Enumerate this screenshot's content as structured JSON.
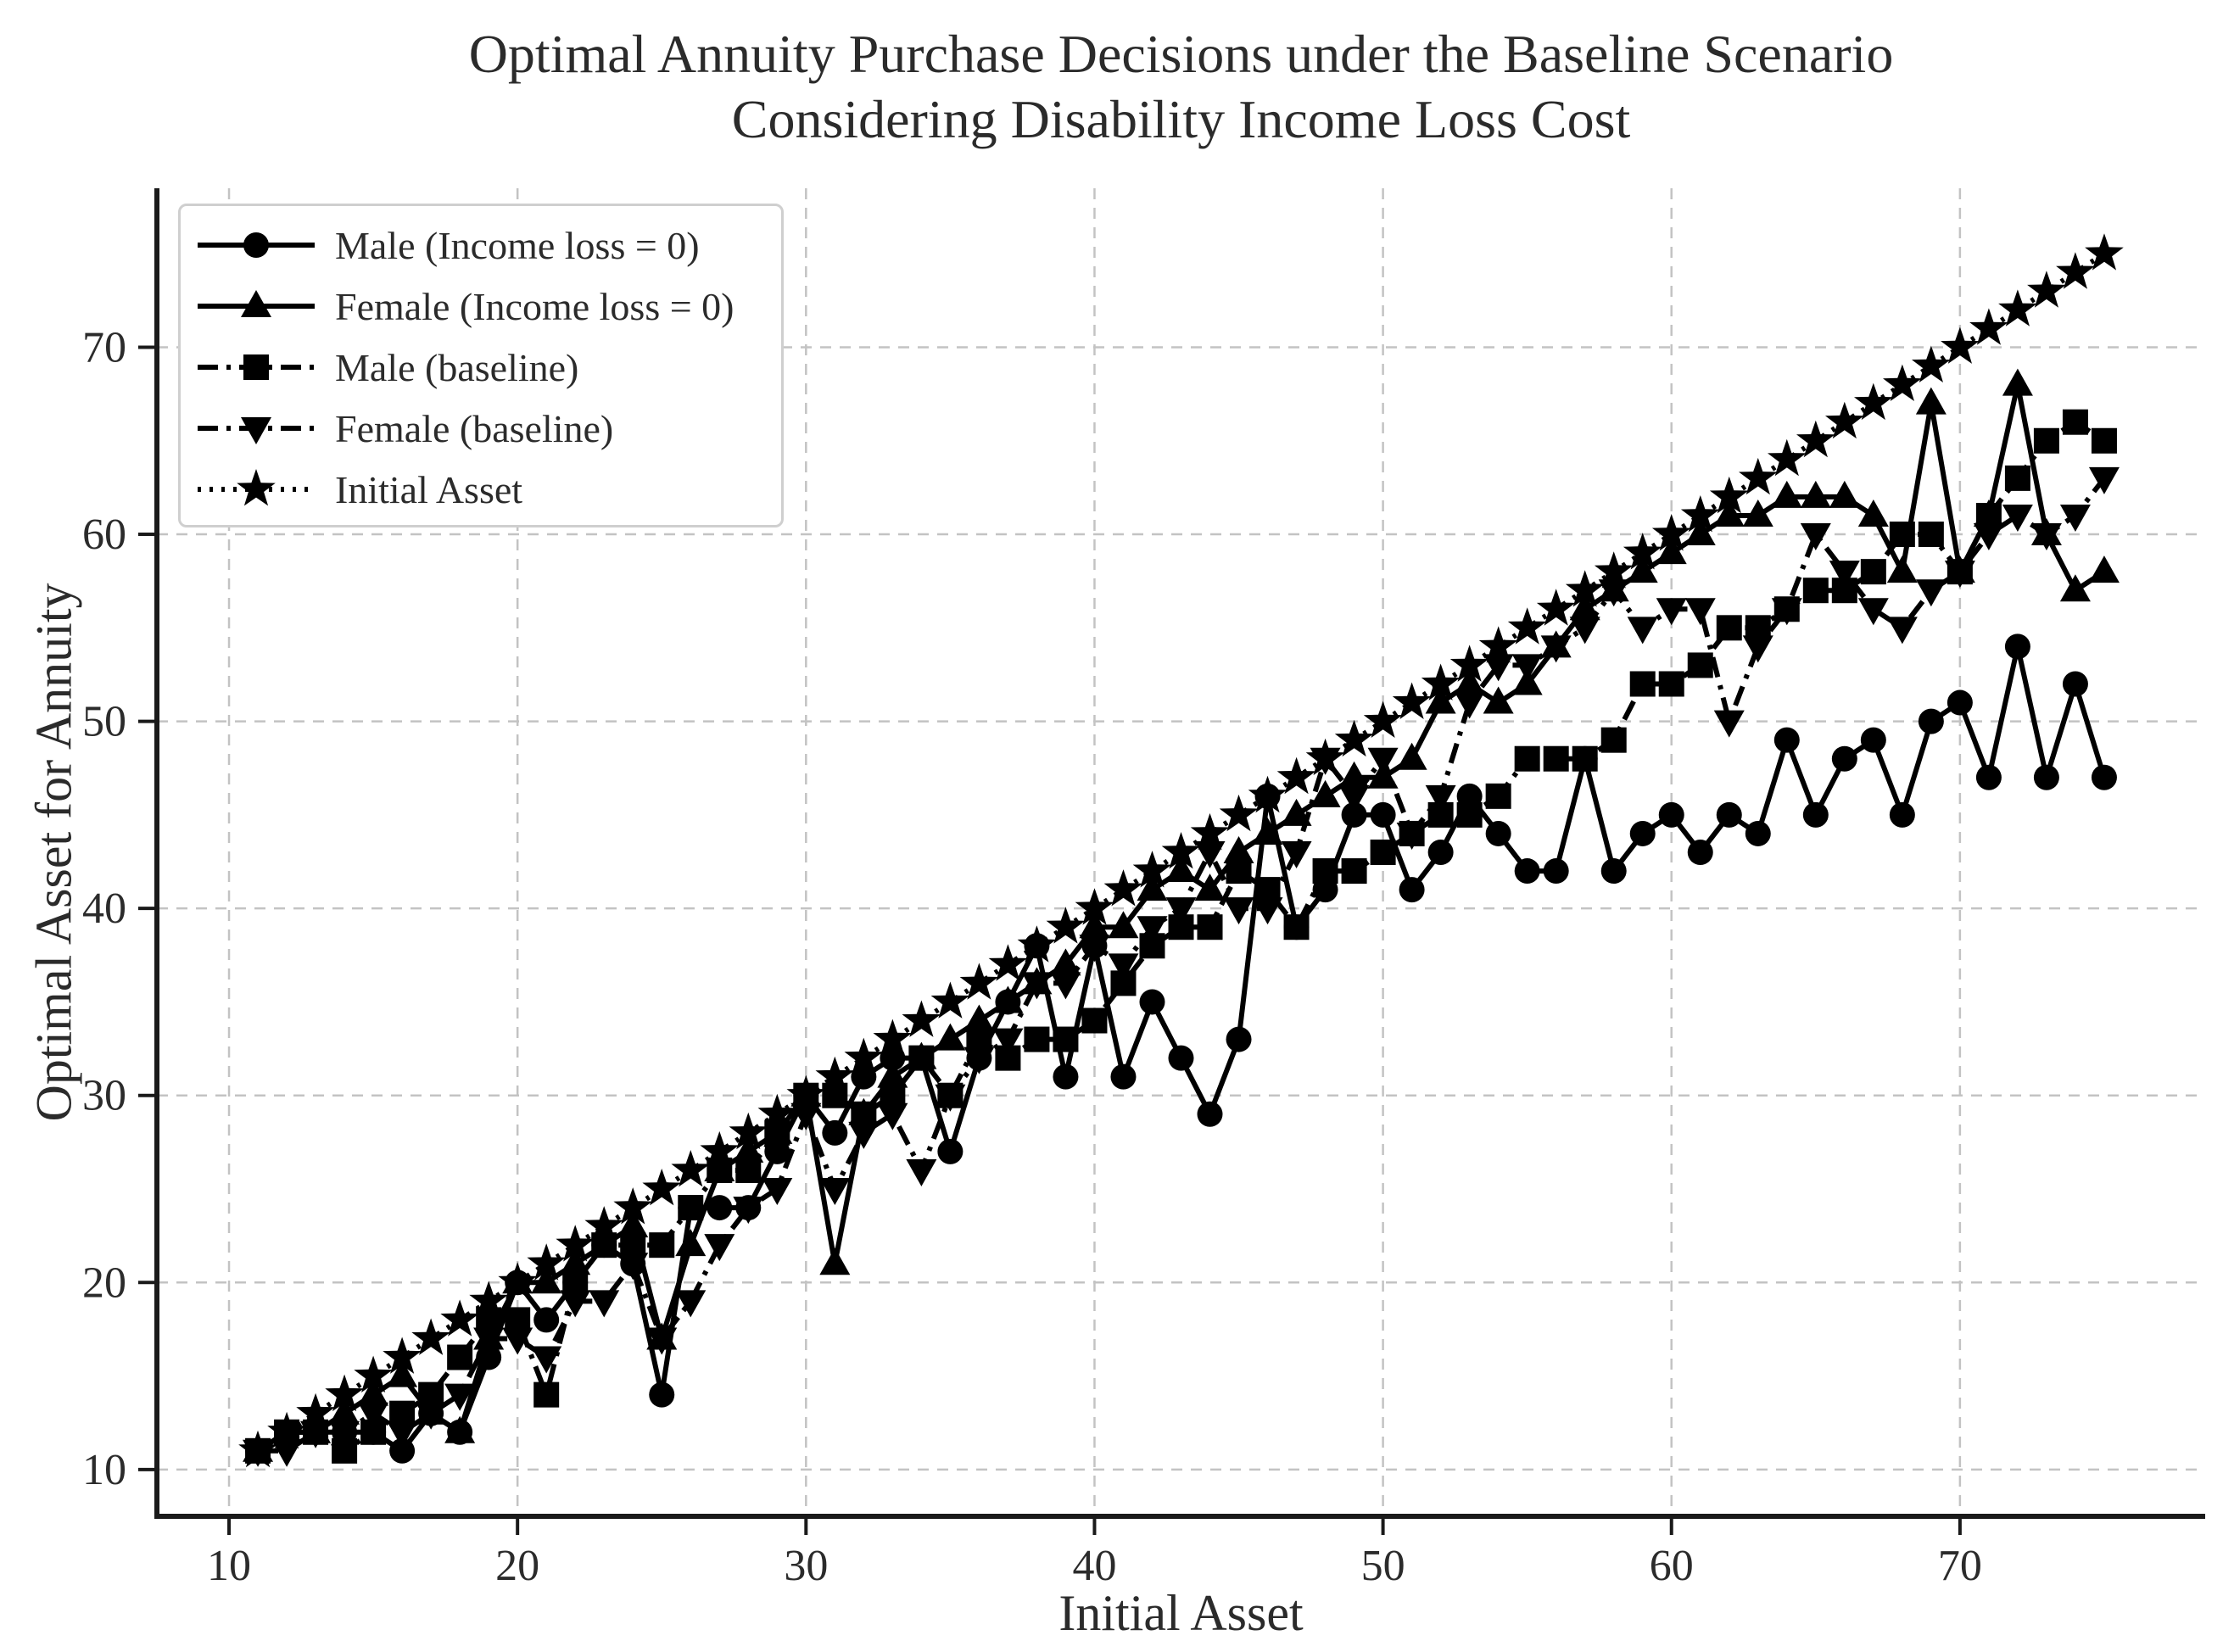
{
  "figure": {
    "background": "#ffffff",
    "text_color": "#2b2b2b",
    "line_color": "#000000",
    "grid_color": "#c3c3c3"
  },
  "chart_data": {
    "type": "line",
    "title": "Optimal Annuity Purchase Decisions under the Baseline Scenario\nConsidering Disability Income Loss Cost",
    "xlabel": "Initial Asset",
    "ylabel": "Optimal Asset for Annuity",
    "xlim": [
      7.5,
      78.5
    ],
    "ylim": [
      7.5,
      78.5
    ],
    "xticks": [
      10,
      20,
      30,
      40,
      50,
      60,
      70
    ],
    "yticks": [
      10,
      20,
      30,
      40,
      50,
      60,
      70
    ],
    "grid": true,
    "legend_position": "upper left",
    "x": [
      11,
      12,
      13,
      14,
      15,
      16,
      17,
      18,
      19,
      20,
      21,
      22,
      23,
      24,
      25,
      26,
      27,
      28,
      29,
      30,
      31,
      32,
      33,
      34,
      35,
      36,
      37,
      38,
      39,
      40,
      41,
      42,
      43,
      44,
      45,
      46,
      47,
      48,
      49,
      50,
      51,
      52,
      53,
      54,
      55,
      56,
      57,
      58,
      59,
      60,
      61,
      62,
      63,
      64,
      65,
      66,
      67,
      68,
      69,
      70,
      71,
      72,
      73,
      74,
      75
    ],
    "series": [
      {
        "name": "Male (Income loss = 0)",
        "marker": "circle",
        "linestyle": "solid",
        "values": [
          11,
          12,
          12,
          12,
          12,
          11,
          13,
          12,
          16,
          20,
          18,
          20,
          22,
          21,
          14,
          24,
          24,
          24,
          27,
          30,
          28,
          31,
          32,
          32,
          27,
          32,
          35,
          38,
          31,
          38,
          31,
          35,
          32,
          29,
          33,
          46,
          39,
          41,
          45,
          45,
          41,
          43,
          46,
          44,
          42,
          42,
          48,
          42,
          44,
          45,
          43,
          45,
          44,
          49,
          45,
          48,
          49,
          45,
          50,
          51,
          47,
          54,
          47,
          52,
          47
        ]
      },
      {
        "name": "Female (Income loss = 0)",
        "marker": "triangle-up",
        "linestyle": "solid",
        "values": [
          11,
          12,
          12,
          13,
          14,
          15,
          13,
          12,
          17,
          20,
          20,
          21,
          22,
          23,
          17,
          22,
          26,
          27,
          28,
          30,
          21,
          29,
          31,
          32,
          33,
          34,
          35,
          36,
          37,
          39,
          39,
          41,
          42,
          41,
          43,
          44,
          45,
          46,
          47,
          47,
          48,
          51,
          52,
          51,
          52,
          54,
          56,
          57,
          58,
          59,
          60,
          61,
          61,
          62,
          62,
          62,
          61,
          58,
          67,
          58,
          61,
          68,
          60,
          57,
          58
        ]
      },
      {
        "name": "Male (baseline)",
        "marker": "square",
        "linestyle": "dashdot",
        "values": [
          11,
          12,
          12,
          11,
          12,
          13,
          14,
          16,
          18,
          18,
          14,
          20,
          22,
          22,
          22,
          24,
          26,
          26,
          28,
          30,
          30,
          29,
          30,
          32,
          30,
          33,
          32,
          33,
          33,
          34,
          36,
          38,
          39,
          39,
          42,
          41,
          39,
          42,
          42,
          43,
          44,
          45,
          45,
          46,
          48,
          48,
          48,
          49,
          52,
          52,
          53,
          55,
          55,
          56,
          57,
          57,
          58,
          60,
          60,
          58,
          61,
          63,
          65,
          66,
          65
        ]
      },
      {
        "name": "Female (baseline)",
        "marker": "triangle-down",
        "linestyle": "dashdot",
        "values": [
          11,
          11,
          12,
          12,
          13,
          12,
          13,
          14,
          17,
          17,
          16,
          19,
          19,
          21,
          17,
          19,
          22,
          24,
          25,
          29,
          25,
          28,
          29,
          26,
          30,
          32,
          33,
          36,
          36,
          38,
          37,
          39,
          40,
          43,
          40,
          40,
          43,
          48,
          46,
          48,
          44,
          46,
          51,
          53,
          53,
          54,
          55,
          57,
          55,
          56,
          56,
          50,
          54,
          56,
          60,
          58,
          56,
          55,
          57,
          58,
          60,
          61,
          60,
          61,
          63
        ]
      },
      {
        "name": "Initial Asset",
        "marker": "star",
        "linestyle": "dotted",
        "values": [
          11,
          12,
          13,
          14,
          15,
          16,
          17,
          18,
          19,
          20,
          21,
          22,
          23,
          24,
          25,
          26,
          27,
          28,
          29,
          30,
          31,
          32,
          33,
          34,
          35,
          36,
          37,
          38,
          39,
          40,
          41,
          42,
          43,
          44,
          45,
          46,
          47,
          48,
          49,
          50,
          51,
          52,
          53,
          54,
          55,
          56,
          57,
          58,
          59,
          60,
          61,
          62,
          63,
          64,
          65,
          66,
          67,
          68,
          69,
          70,
          71,
          72,
          73,
          74,
          75
        ]
      }
    ]
  }
}
